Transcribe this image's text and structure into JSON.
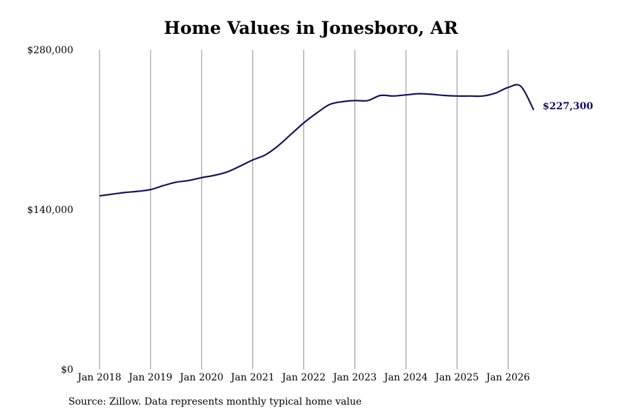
{
  "chart_data": {
    "type": "line",
    "title": "Home Values in Jonesboro, AR",
    "source": "Source: Zillow. Data represents monthly typical home value",
    "x_ticks": [
      "Jan 2018",
      "Jan 2019",
      "Jan 2020",
      "Jan 2021",
      "Jan 2022",
      "Jan 2023",
      "Jan 2024",
      "Jan 2025",
      "Jan 2026"
    ],
    "y_ticks": [
      "$0",
      "$140,000",
      "$280,000"
    ],
    "ylim": [
      0,
      280000
    ],
    "x_start": "2018-01",
    "grid": {
      "vertical": true,
      "horizontal": false
    },
    "colors": {
      "line": "#12105c",
      "grid": "#8c8c8c"
    },
    "end_label": "$227,300",
    "series": [
      {
        "x": [
          "2018-01",
          "2018-04",
          "2018-07",
          "2018-10",
          "2019-01",
          "2019-04",
          "2019-07",
          "2019-10",
          "2020-01",
          "2020-04",
          "2020-07",
          "2020-10",
          "2021-01",
          "2021-04",
          "2021-07",
          "2021-10",
          "2022-01",
          "2022-04",
          "2022-07",
          "2022-10",
          "2023-01",
          "2023-04",
          "2023-07",
          "2023-10",
          "2024-01",
          "2024-04",
          "2024-07",
          "2024-10",
          "2025-01",
          "2025-04",
          "2025-07",
          "2025-10",
          "2026-01",
          "2026-04",
          "2026-07"
        ],
        "values": [
          152000,
          153500,
          155000,
          156000,
          157500,
          161000,
          164000,
          165500,
          168000,
          170000,
          173000,
          178000,
          183500,
          188000,
          196000,
          206000,
          216000,
          224500,
          232000,
          234500,
          235500,
          235500,
          240000,
          239500,
          240500,
          241500,
          241000,
          240000,
          239500,
          239500,
          239500,
          242000,
          247000,
          248000,
          227300
        ]
      }
    ]
  }
}
